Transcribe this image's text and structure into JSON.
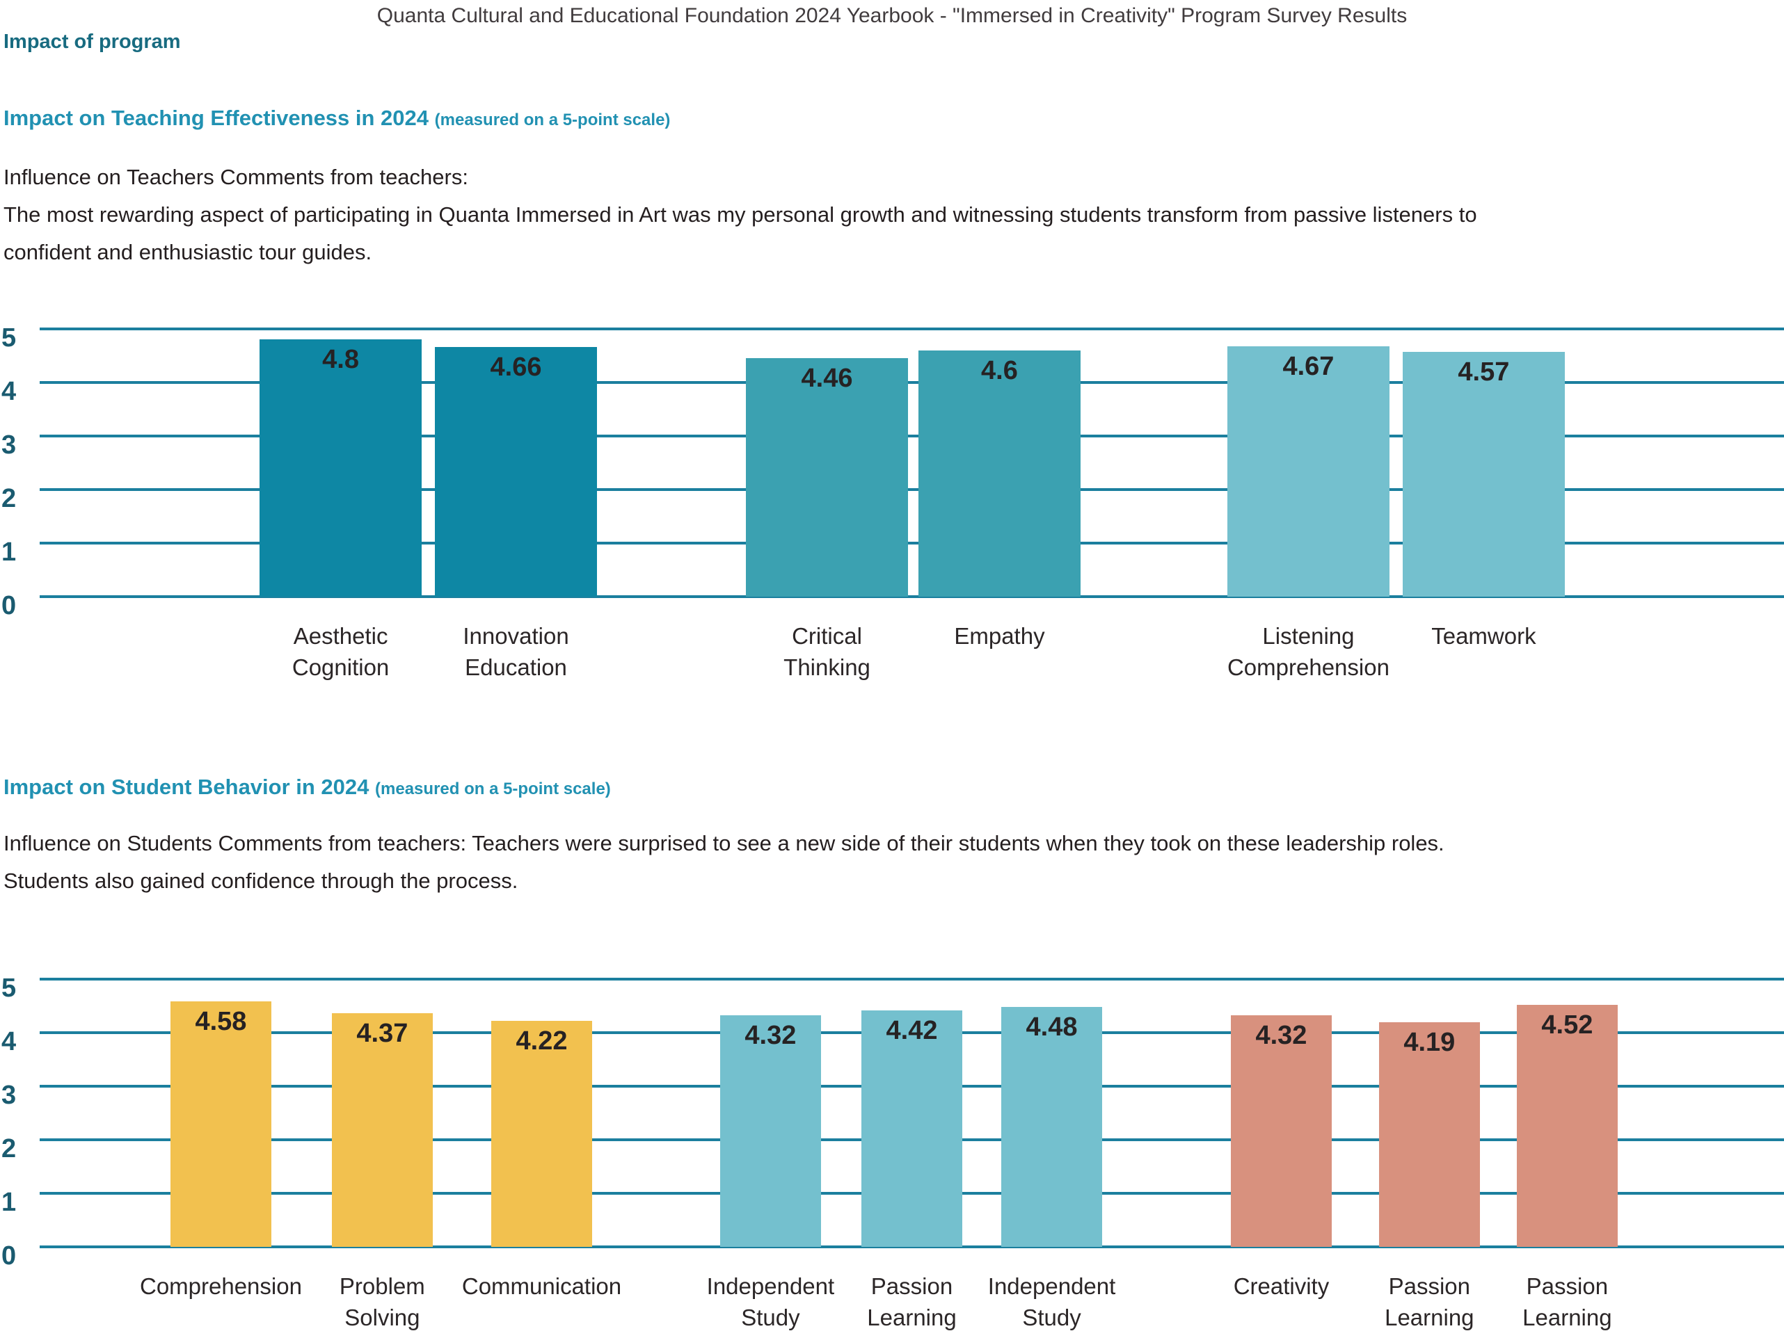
{
  "page": {
    "header_title": "Quanta Cultural and Educational Foundation 2024 Yearbook - \"Immersed in Creativity\" Program Survey Results",
    "section_title": "Impact of program"
  },
  "sections": [
    {
      "heading": "Impact on Teaching Effectiveness in 2024",
      "heading_note": "(measured on a 5-point scale)",
      "paragraph_lines": [
        "Influence on Teachers Comments from teachers:",
        "The most rewarding aspect of participating in Quanta Immersed in Art was my personal growth and witnessing students transform from passive listeners to",
        "confident and enthusiastic tour guides."
      ]
    },
    {
      "heading": "Impact on Student Behavior in 2024",
      "heading_note": "(measured on a 5-point scale)",
      "paragraph_lines": [
        "Influence on Students Comments from teachers: Teachers were surprised to see a new side of their students when they took on these leadership roles.",
        "Students also gained confidence through the process."
      ]
    }
  ],
  "chart_data": [
    {
      "type": "bar",
      "title": "Impact on Teaching Effectiveness in 2024 (measured on a 5-point scale)",
      "categories": [
        "Aesthetic\nCognition",
        "Innovation\nEducation",
        "Critical\nThinking",
        "Empathy",
        "Listening\nComprehension",
        "Teamwork"
      ],
      "values": [
        4.8,
        4.66,
        4.46,
        4.6,
        4.67,
        4.57
      ],
      "value_labels": [
        "4.8",
        "4.66",
        "4.46",
        "4.6",
        "4.67",
        "4.57"
      ],
      "bar_colors": [
        "#0e87a4",
        "#0e87a4",
        "#3ba1b1",
        "#3ba1b1",
        "#74c0ce",
        "#74c0ce"
      ],
      "ylim": [
        0,
        5
      ],
      "yticks": [
        0,
        1,
        2,
        3,
        4,
        5
      ],
      "grid": true,
      "legend": "none",
      "x_pct": [
        12.61,
        22.66,
        40.49,
        50.38,
        68.09,
        78.14
      ],
      "bar_width_pct": 9.29
    },
    {
      "type": "bar",
      "title": "Impact on Student Behavior in 2024 (measured on a 5-point scale)",
      "categories": [
        "Comprehension",
        "Problem\nSolving",
        "Communication",
        "Independent\nStudy",
        "Passion\nLearning",
        "Independent\nStudy",
        "Creativity",
        "Passion\nLearning",
        "Passion\nLearning"
      ],
      "values": [
        4.58,
        4.37,
        4.22,
        4.32,
        4.42,
        4.48,
        4.32,
        4.19,
        4.52
      ],
      "value_labels": [
        "4.58",
        "4.37",
        "4.22",
        "4.32",
        "4.42",
        "4.48",
        "4.32",
        "4.19",
        "4.52"
      ],
      "bar_colors": [
        "#f2c14f",
        "#f2c14f",
        "#f2c14f",
        "#74c0ce",
        "#74c0ce",
        "#74c0ce",
        "#d8917e",
        "#d8917e",
        "#d8917e"
      ],
      "ylim": [
        0,
        5
      ],
      "yticks": [
        0,
        1,
        2,
        3,
        4,
        5
      ],
      "grid": true,
      "legend": "none",
      "x_pct": [
        7.5,
        16.75,
        25.89,
        39.01,
        47.11,
        55.13,
        68.29,
        76.78,
        84.68
      ],
      "bar_width_pct": 5.78
    }
  ],
  "colors": {
    "gridline": "#1b7f9e",
    "axis_label": "#1a5b70",
    "heading_teal": "#186b80",
    "heading_blue": "#2191b2",
    "title_gray": "#413c3e",
    "body_text": "#241e1f",
    "value_label": "#262223",
    "bar_dark_teal": "#0e87a4",
    "bar_medium_teal": "#3ba1b1",
    "bar_light_teal": "#74c0ce",
    "bar_yellow": "#f2c14f",
    "bar_salmon": "#d8917e"
  }
}
